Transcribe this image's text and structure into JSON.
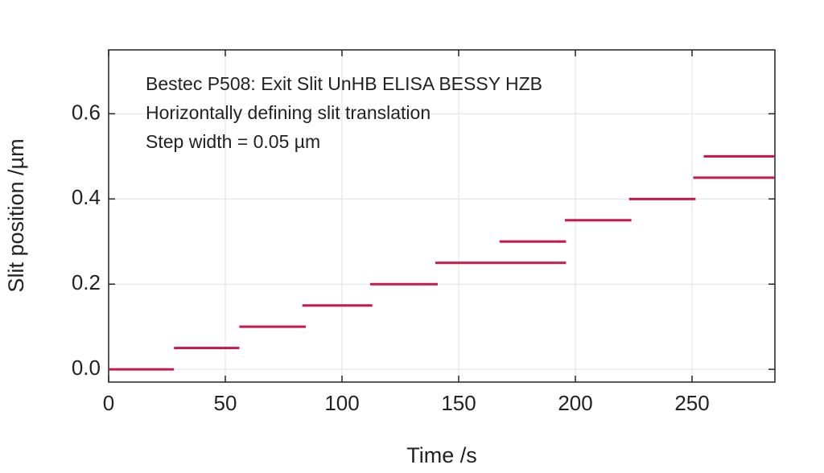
{
  "chart_data": {
    "type": "line",
    "annotations": [
      "Bestec P508: Exit Slit UnHB ELISA BESSY HZB",
      "Horizontally defining slit translation",
      "Step width = 0.05 µm"
    ],
    "x_label": "Time /s",
    "y_label": "Slit position /µm",
    "series": [
      {
        "color": "#c8174a",
        "x": [
          0,
          28,
          null,
          28,
          56,
          null,
          56,
          84.5,
          null,
          83,
          113,
          null,
          112,
          141,
          null,
          140,
          196,
          null,
          167.5,
          196,
          null,
          195.5,
          224,
          null,
          223,
          251.5,
          null,
          250.5,
          285.5,
          null,
          255,
          285.5
        ],
        "values": [
          0,
          0,
          null,
          0.05,
          0.05,
          null,
          0.1,
          0.1,
          null,
          0.15,
          0.15,
          null,
          0.2,
          0.2,
          null,
          0.25,
          0.25,
          null,
          0.3,
          0.3,
          null,
          0.35,
          0.35,
          null,
          0.4,
          0.4,
          null,
          0.45,
          0.45,
          null,
          0.5,
          0.5
        ]
      }
    ],
    "xlim": [
      0,
      285.5
    ],
    "ylim": [
      -0.03,
      0.75
    ],
    "xticks": [
      0,
      50,
      100,
      150,
      200,
      250
    ],
    "yticks": [
      {
        "value": 0,
        "label": "0.0"
      },
      0.2,
      0.4,
      0.6
    ],
    "grid": true
  }
}
